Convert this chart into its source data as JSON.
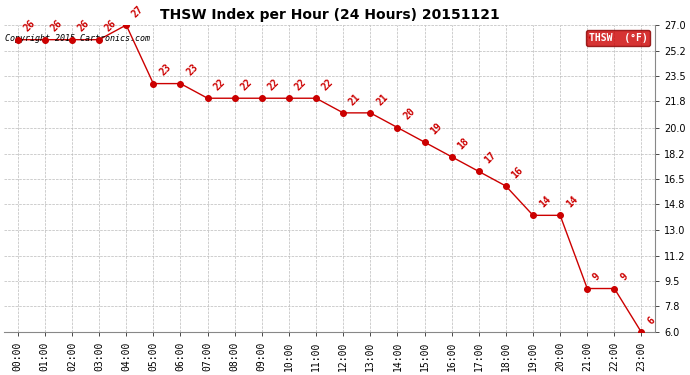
{
  "title": "THSW Index per Hour (24 Hours) 20151121",
  "copyright": "Copyright 2015 Cartronics.com",
  "hours": [
    "00:00",
    "01:00",
    "02:00",
    "03:00",
    "04:00",
    "05:00",
    "06:00",
    "07:00",
    "08:00",
    "09:00",
    "10:00",
    "11:00",
    "12:00",
    "13:00",
    "14:00",
    "15:00",
    "16:00",
    "17:00",
    "18:00",
    "19:00",
    "20:00",
    "21:00",
    "22:00",
    "23:00"
  ],
  "values": [
    26,
    26,
    26,
    26,
    27,
    23,
    23,
    22,
    22,
    22,
    22,
    22,
    21,
    21,
    20,
    19,
    18,
    17,
    16,
    14,
    14,
    9,
    9,
    6
  ],
  "ylim": [
    6.0,
    27.0
  ],
  "yticks": [
    6.0,
    7.8,
    9.5,
    11.2,
    13.0,
    14.8,
    16.5,
    18.2,
    20.0,
    21.8,
    23.5,
    25.2,
    27.0
  ],
  "line_color": "#cc0000",
  "marker_color": "#000000",
  "label_color": "#cc0000",
  "bg_color": "#ffffff",
  "grid_color": "#bbbbbb",
  "legend_bg": "#cc0000",
  "legend_text": "THSW  (°F)"
}
